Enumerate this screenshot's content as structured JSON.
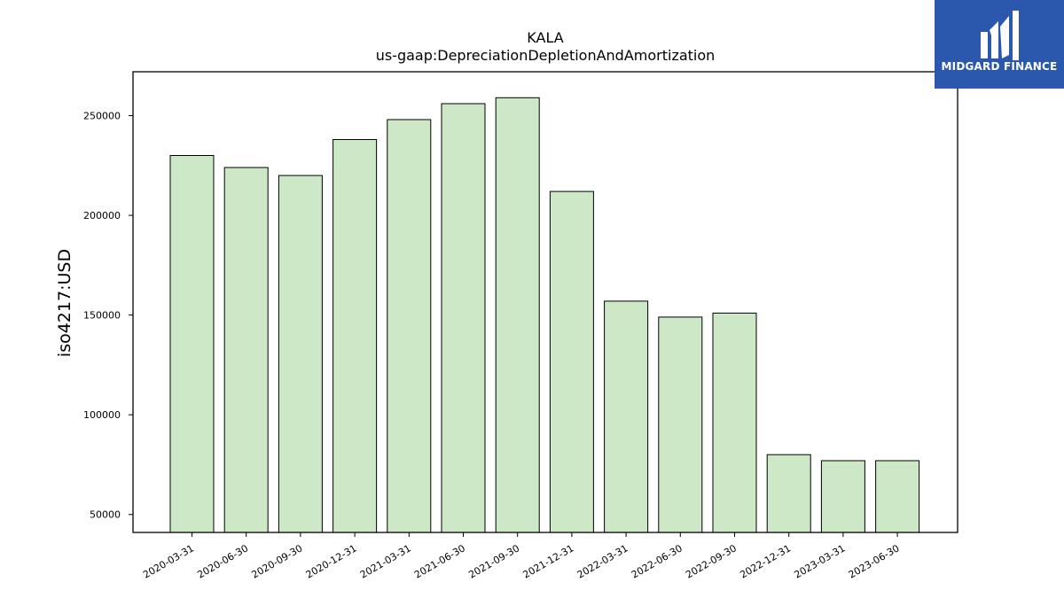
{
  "logo": {
    "text": "MIDGARD FINANCE"
  },
  "chart_data": {
    "type": "bar",
    "title": "KALA",
    "subtitle": "us-gaap:DepreciationDepletionAndAmortization",
    "xlabel": "",
    "ylabel": "iso4217:USD",
    "categories": [
      "2020-03-31",
      "2020-06-30",
      "2020-09-30",
      "2020-12-31",
      "2021-03-31",
      "2021-06-30",
      "2021-09-30",
      "2021-12-31",
      "2022-03-31",
      "2022-06-30",
      "2022-09-30",
      "2022-12-31",
      "2023-03-31",
      "2023-06-30"
    ],
    "values": [
      230000,
      224000,
      220000,
      238000,
      248000,
      256000,
      259000,
      212000,
      157000,
      149000,
      151000,
      80000,
      77000,
      77000
    ],
    "yticks": [
      50000,
      100000,
      150000,
      200000,
      250000
    ],
    "ytick_labels": [
      "50000",
      "100000",
      "150000",
      "200000",
      "250000"
    ],
    "ylim": [
      41000,
      272000
    ],
    "bar_color": "#cce8c6",
    "bar_edge_color": "#000000",
    "grid": false,
    "legend": "none"
  }
}
